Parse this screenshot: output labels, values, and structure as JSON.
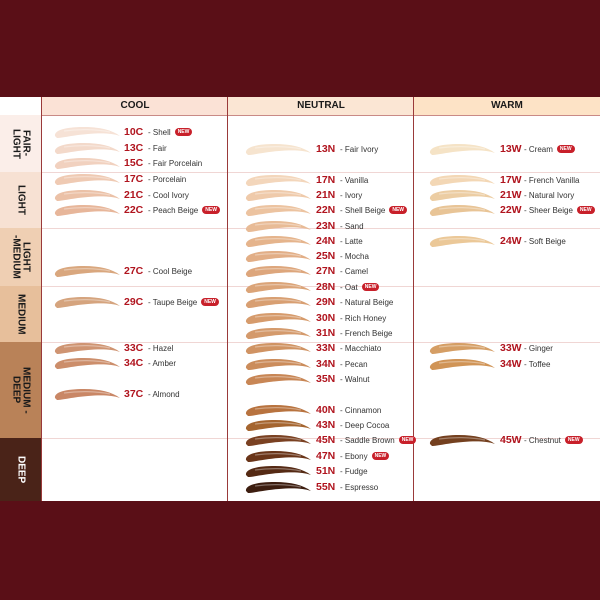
{
  "columns": [
    {
      "label": "COOL",
      "bg": "#fbe2d6"
    },
    {
      "label": "NEUTRAL",
      "bg": "#fbe6d4"
    },
    {
      "label": "WARM",
      "bg": "#fde3c6"
    }
  ],
  "bands": [
    {
      "label": "FAIR-\nLIGHT",
      "bg": "#fbeee9",
      "fg": "#1a1a1a"
    },
    {
      "label": "LIGHT",
      "bg": "#f7e1d3",
      "fg": "#1a1a1a"
    },
    {
      "label": "LIGHT\n-MEDIUM",
      "bg": "#efcfb3",
      "fg": "#1a1a1a"
    },
    {
      "label": "MEDIUM",
      "bg": "#e7bf9b",
      "fg": "#1a1a1a"
    },
    {
      "label": "MEDIUM -\nDEEP",
      "bg": "#b98258",
      "fg": "#1a1a1a"
    },
    {
      "label": "DEEP",
      "bg": "#4a2318",
      "fg": "#ffffff"
    }
  ],
  "new_badge": "NEW",
  "shades": [
    {
      "code": "10C",
      "name": "- Shell",
      "new": true,
      "col": 0,
      "color": "#f6e2d6"
    },
    {
      "code": "13C",
      "name": "- Fair",
      "new": false,
      "col": 0,
      "color": "#f3d9ca"
    },
    {
      "code": "15C",
      "name": "- Fair Porcelain",
      "new": false,
      "col": 0,
      "color": "#f1d1bf"
    },
    {
      "code": "17C",
      "name": "- Porcelain",
      "new": false,
      "col": 0,
      "color": "#efcab3"
    },
    {
      "code": "21C",
      "name": "- Cool Ivory",
      "new": false,
      "col": 0,
      "color": "#ebc1a7"
    },
    {
      "code": "22C",
      "name": "- Peach Beige",
      "new": true,
      "col": 0,
      "color": "#e7b69a"
    },
    {
      "code": "27C",
      "name": "- Cool Beige",
      "new": false,
      "col": 0,
      "color": "#d9a77e"
    },
    {
      "code": "29C",
      "name": "- Taupe Beige",
      "new": true,
      "col": 0,
      "color": "#d5a47e"
    },
    {
      "code": "33C",
      "name": "- Hazel",
      "new": false,
      "col": 0,
      "color": "#cf9472"
    },
    {
      "code": "34C",
      "name": "- Amber",
      "new": false,
      "col": 0,
      "color": "#cc8e6b"
    },
    {
      "code": "37C",
      "name": "- Almond",
      "new": false,
      "col": 0,
      "color": "#c98766"
    },
    {
      "code": "13N",
      "name": "- Fair Ivory",
      "new": false,
      "col": 1,
      "color": "#f6e4cf"
    },
    {
      "code": "17N",
      "name": "- Vanilla",
      "new": false,
      "col": 1,
      "color": "#f3d6bb"
    },
    {
      "code": "21N",
      "name": "- Ivory",
      "new": false,
      "col": 1,
      "color": "#efcaaa"
    },
    {
      "code": "22N",
      "name": "- Shell Beige",
      "new": true,
      "col": 1,
      "color": "#ecc3a0"
    },
    {
      "code": "23N",
      "name": "- Sand",
      "new": false,
      "col": 1,
      "color": "#e8bb96"
    },
    {
      "code": "24N",
      "name": "- Latte",
      "new": false,
      "col": 1,
      "color": "#e5b48c"
    },
    {
      "code": "25N",
      "name": "- Mocha",
      "new": false,
      "col": 1,
      "color": "#e2ae86"
    },
    {
      "code": "27N",
      "name": "- Camel",
      "new": false,
      "col": 1,
      "color": "#dda67c"
    },
    {
      "code": "28N",
      "name": "- Oat",
      "new": true,
      "col": 1,
      "color": "#dba478"
    },
    {
      "code": "29N",
      "name": "- Natural Beige",
      "new": false,
      "col": 1,
      "color": "#d89f72"
    },
    {
      "code": "30N",
      "name": "- Rich Honey",
      "new": false,
      "col": 1,
      "color": "#d69b6c"
    },
    {
      "code": "31N",
      "name": "- French Beige",
      "new": false,
      "col": 1,
      "color": "#d49a6c"
    },
    {
      "code": "33N",
      "name": "- Macchiato",
      "new": false,
      "col": 1,
      "color": "#d09363"
    },
    {
      "code": "34N",
      "name": "- Pecan",
      "new": false,
      "col": 1,
      "color": "#cb8c5b"
    },
    {
      "code": "35N",
      "name": "- Walnut",
      "new": false,
      "col": 1,
      "color": "#c88655"
    },
    {
      "code": "40N",
      "name": "- Cinnamon",
      "new": false,
      "col": 1,
      "color": "#b8733f"
    },
    {
      "code": "43N",
      "name": "- Deep Cocoa",
      "new": false,
      "col": 1,
      "color": "#a5652f"
    },
    {
      "code": "45N",
      "name": "- Saddle Brown",
      "new": true,
      "col": 1,
      "color": "#7a4122"
    },
    {
      "code": "47N",
      "name": "- Ebony",
      "new": true,
      "col": 1,
      "color": "#6a3519"
    },
    {
      "code": "51N",
      "name": "- Fudge",
      "new": false,
      "col": 1,
      "color": "#552a14"
    },
    {
      "code": "55N",
      "name": "- Espresso",
      "new": false,
      "col": 1,
      "color": "#3d1e10"
    },
    {
      "code": "13W",
      "name": "- Cream",
      "new": true,
      "col": 2,
      "color": "#f5e3c6"
    },
    {
      "code": "17W",
      "name": "- French Vanilla",
      "new": false,
      "col": 2,
      "color": "#f3d7b5"
    },
    {
      "code": "21W",
      "name": "- Natural Ivory",
      "new": false,
      "col": 2,
      "color": "#eccda3"
    },
    {
      "code": "22W",
      "name": "- Sheer Beige",
      "new": true,
      "col": 2,
      "color": "#e8c496"
    },
    {
      "code": "24W",
      "name": "- Soft Beige",
      "new": false,
      "col": 2,
      "color": "#ebc898"
    },
    {
      "code": "33W",
      "name": "- Ginger",
      "new": false,
      "col": 2,
      "color": "#d59e65"
    },
    {
      "code": "34W",
      "name": "- Toffee",
      "new": false,
      "col": 2,
      "color": "#d09456"
    },
    {
      "code": "45W",
      "name": "- Chestnut",
      "new": true,
      "col": 2,
      "color": "#74401f"
    }
  ]
}
